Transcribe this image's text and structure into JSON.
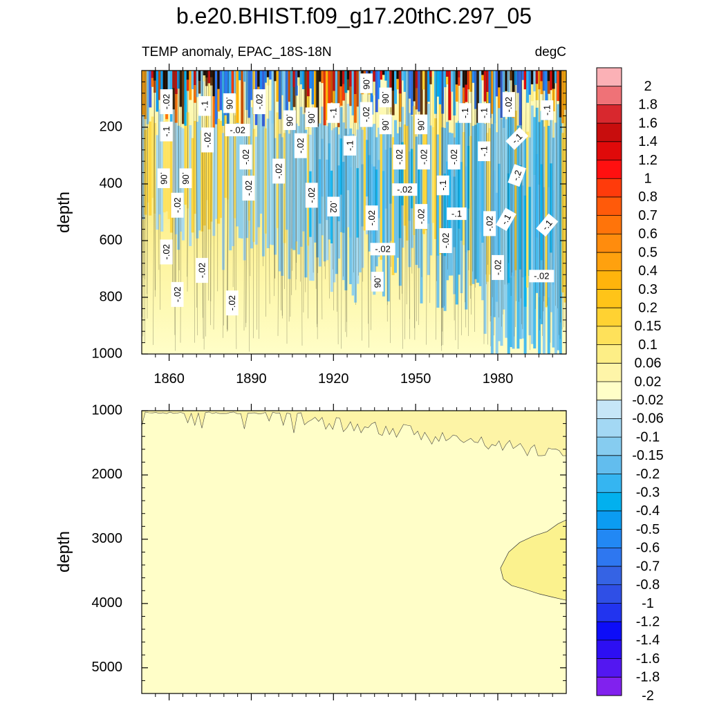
{
  "chart_data": {
    "type": "heatmap",
    "title": "b.e20.BHIST.f09_g17.20thC.297_05",
    "subtitle_left": "TEMP anomaly, EPAC_18S-18N",
    "subtitle_right": "degC",
    "colorbar": {
      "levels": [
        "2",
        "1.8",
        "1.6",
        "1.4",
        "1.2",
        "1",
        "0.8",
        "0.7",
        "0.6",
        "0.5",
        "0.4",
        "0.3",
        "0.2",
        "0.15",
        "0.1",
        "0.06",
        "0.02",
        "-0.02",
        "-0.06",
        "-0.1",
        "-0.15",
        "-0.2",
        "-0.3",
        "-0.4",
        "-0.5",
        "-0.6",
        "-0.7",
        "-0.8",
        "-1",
        "-1.2",
        "-1.4",
        "-1.6",
        "-1.8",
        "-2"
      ],
      "colors": [
        "#fbb1b6",
        "#ef7277",
        "#d8282e",
        "#c80d0d",
        "#e00a0a",
        "#ff1010",
        "#ff3b0b",
        "#ff5a0a",
        "#ff740a",
        "#ff8c0d",
        "#ffa10e",
        "#ffb40c",
        "#ffc418",
        "#ffd232",
        "#fee15a",
        "#fdee86",
        "#fef5a8",
        "#fffec8",
        "#c6e6f7",
        "#a3d8f4",
        "#86ccf0",
        "#62bdee",
        "#35b5f1",
        "#02b0ee",
        "#0b9cf2",
        "#2288f4",
        "#2e77f0",
        "#3563e4",
        "#2f4fe6",
        "#2234ef",
        "#0d0df8",
        "#2d0ff3",
        "#5317f1",
        "#8121ee"
      ]
    },
    "panels": [
      {
        "name": "upper",
        "ylabel": "depth",
        "xlim": [
          1850,
          2005
        ],
        "ylim": [
          1000,
          0
        ],
        "xticks": [
          1860,
          1890,
          1920,
          1950,
          1980
        ],
        "xticklabels": [
          "1860",
          "1890",
          "1920",
          "1950",
          "1980"
        ],
        "yticks": [
          200,
          400,
          600,
          800,
          1000
        ],
        "yticklabels": [
          "200",
          "400",
          "600",
          "800",
          "1000"
        ],
        "contour_labels": [
          {
            "text": "-.02",
            "x": 1859,
            "y": 110,
            "rot": -90
          },
          {
            "text": "-.1",
            "x": 1859,
            "y": 215,
            "rot": -90
          },
          {
            "text": ".06",
            "x": 1858,
            "y": 380,
            "rot": 90
          },
          {
            "text": ".06",
            "x": 1866,
            "y": 380,
            "rot": 90
          },
          {
            "text": "-.02",
            "x": 1863,
            "y": 475,
            "rot": -90
          },
          {
            "text": "-.02",
            "x": 1859,
            "y": 640,
            "rot": -90
          },
          {
            "text": "-.02",
            "x": 1863,
            "y": 790,
            "rot": -90
          },
          {
            "text": "-.1",
            "x": 1873,
            "y": 125,
            "rot": -90
          },
          {
            "text": "-.02",
            "x": 1874,
            "y": 245,
            "rot": -90
          },
          {
            "text": "-.02",
            "x": 1872,
            "y": 705,
            "rot": -90
          },
          {
            "text": ".06",
            "x": 1882,
            "y": 115,
            "rot": 90
          },
          {
            "text": "-.02",
            "x": 1885,
            "y": 210,
            "rot": 0
          },
          {
            "text": "-.02",
            "x": 1888,
            "y": 305,
            "rot": -90
          },
          {
            "text": "-.02",
            "x": 1889,
            "y": 415,
            "rot": -90
          },
          {
            "text": "-.02",
            "x": 1883,
            "y": 820,
            "rot": -90
          },
          {
            "text": "-.02",
            "x": 1893,
            "y": 110,
            "rot": -90
          },
          {
            "text": "-.02",
            "x": 1900,
            "y": 355,
            "rot": -90
          },
          {
            "text": ".06",
            "x": 1904,
            "y": 175,
            "rot": 90
          },
          {
            "text": "-.02",
            "x": 1908,
            "y": 265,
            "rot": -90
          },
          {
            "text": ".06",
            "x": 1912,
            "y": 165,
            "rot": 90
          },
          {
            "text": "-.02",
            "x": 1912,
            "y": 440,
            "rot": -90
          },
          {
            "text": "-.1",
            "x": 1920,
            "y": 150,
            "rot": -90
          },
          {
            "text": ".02",
            "x": 1920,
            "y": 480,
            "rot": 90
          },
          {
            "text": "-.1",
            "x": 1926,
            "y": 265,
            "rot": -90
          },
          {
            "text": ".06",
            "x": 1932,
            "y": 45,
            "rot": 90
          },
          {
            "text": "-.02",
            "x": 1932,
            "y": 155,
            "rot": -90
          },
          {
            "text": "-.02",
            "x": 1934,
            "y": 520,
            "rot": -90
          },
          {
            "text": ".06",
            "x": 1939,
            "y": 95,
            "rot": 90
          },
          {
            "text": ".06",
            "x": 1939,
            "y": 190,
            "rot": 90
          },
          {
            "text": "-.02",
            "x": 1938,
            "y": 630,
            "rot": 0
          },
          {
            "text": ".06",
            "x": 1936,
            "y": 745,
            "rot": 90
          },
          {
            "text": "-.02",
            "x": 1944,
            "y": 305,
            "rot": -90
          },
          {
            "text": "-.02",
            "x": 1946,
            "y": 420,
            "rot": 0
          },
          {
            "text": ".06",
            "x": 1952,
            "y": 190,
            "rot": 90
          },
          {
            "text": "-.02",
            "x": 1953,
            "y": 305,
            "rot": -90
          },
          {
            "text": "-.02",
            "x": 1952,
            "y": 515,
            "rot": -90
          },
          {
            "text": "-.02",
            "x": 1961,
            "y": 600,
            "rot": -90
          },
          {
            "text": "-.1",
            "x": 1960,
            "y": 405,
            "rot": -90
          },
          {
            "text": "-.1",
            "x": 1965,
            "y": 505,
            "rot": 0
          },
          {
            "text": "-.02",
            "x": 1964,
            "y": 305,
            "rot": -90
          },
          {
            "text": "-.1",
            "x": 1968,
            "y": 150,
            "rot": -90
          },
          {
            "text": "-.1",
            "x": 1975,
            "y": 285,
            "rot": -90
          },
          {
            "text": "-.1",
            "x": 1975,
            "y": 150,
            "rot": -90
          },
          {
            "text": "-.02",
            "x": 1977,
            "y": 540,
            "rot": -90
          },
          {
            "text": "-.02",
            "x": 1980,
            "y": 695,
            "rot": -90
          },
          {
            "text": "-.02",
            "x": 1984,
            "y": 120,
            "rot": -90
          },
          {
            "text": "-.1",
            "x": 1987,
            "y": 240,
            "rot": -45
          },
          {
            "text": "-.2",
            "x": 1987,
            "y": 370,
            "rot": -70
          },
          {
            "text": "-.1",
            "x": 1983,
            "y": 525,
            "rot": -60
          },
          {
            "text": "-.1",
            "x": 1998,
            "y": 140,
            "rot": -90
          },
          {
            "text": "-.1",
            "x": 1998,
            "y": 545,
            "rot": -50
          },
          {
            "text": "-.02",
            "x": 1996,
            "y": 725,
            "rot": 0
          }
        ]
      },
      {
        "name": "lower",
        "ylabel": "depth",
        "xlim": [
          1850,
          2005
        ],
        "ylim": [
          5400,
          1000
        ],
        "yticks": [
          1000,
          2000,
          3000,
          4000,
          5000
        ],
        "yticklabels": [
          "1000",
          "2000",
          "3000",
          "4000",
          "5000"
        ],
        "xticks": [
          1860,
          1890,
          1920,
          1950,
          1980
        ]
      }
    ]
  }
}
